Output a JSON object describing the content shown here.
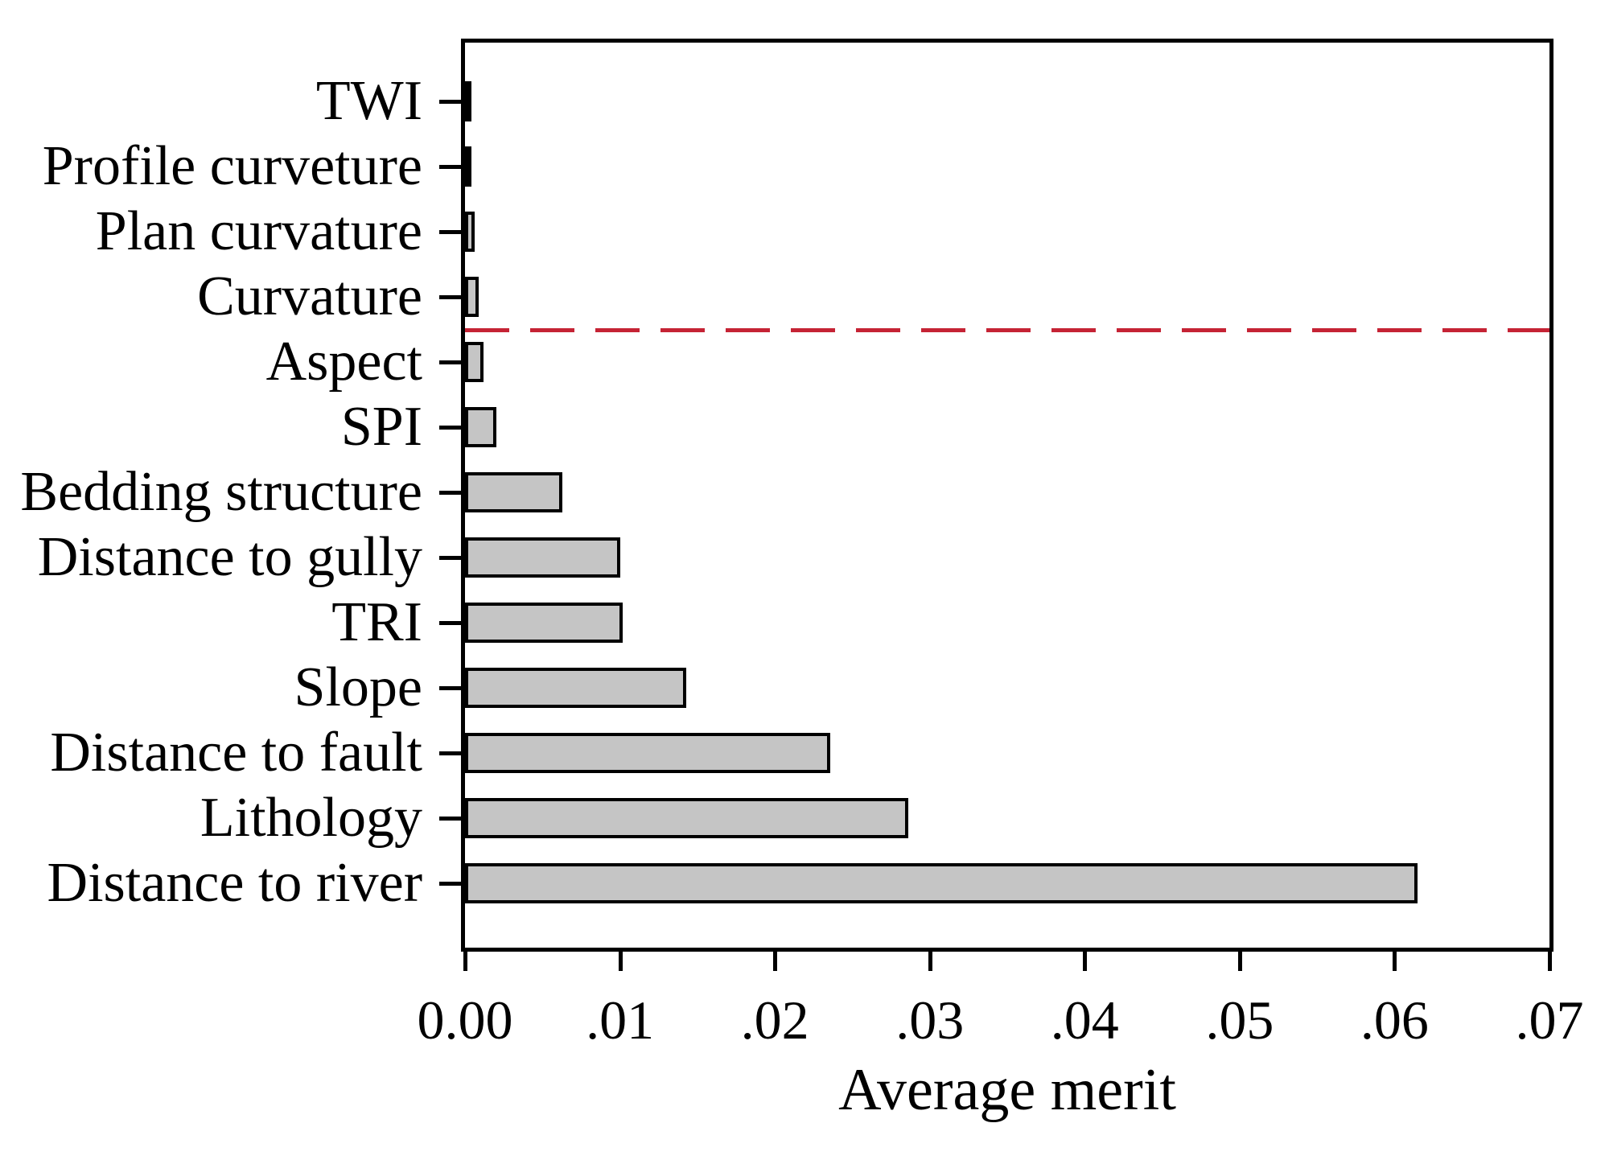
{
  "figure": {
    "background_color": "#ffffff",
    "text_color": "#000000"
  },
  "chart_data": {
    "type": "bar",
    "orientation": "horizontal",
    "title": "",
    "xlabel": "Average merit",
    "ylabel": "",
    "xlim": [
      0,
      0.07
    ],
    "grid": false,
    "legend": null,
    "categories": [
      "TWI",
      "Profile curveture",
      "Plan curvature",
      "Curvature",
      "Aspect",
      "SPI",
      "Bedding structure",
      "Distance to gully",
      "TRI",
      "Slope",
      "Distance to fault",
      "Lithology",
      "Distance to river"
    ],
    "values": [
      0.0003,
      0.0004,
      0.0006,
      0.0009,
      0.0012,
      0.002,
      0.0063,
      0.01,
      0.0102,
      0.0143,
      0.0236,
      0.0286,
      0.0615
    ],
    "x_ticks": {
      "values": [
        0,
        0.01,
        0.02,
        0.03,
        0.04,
        0.05,
        0.06,
        0.07
      ],
      "labels": [
        "0.00",
        ".01",
        ".02",
        ".03",
        ".04",
        ".05",
        ".06",
        ".07"
      ]
    },
    "bar_style": {
      "fill_color": "#c5c5c5",
      "border_color": "#000000"
    },
    "threshold_line": {
      "style": "dashed",
      "color": "#c52335",
      "between_categories": [
        "Curvature",
        "Aspect"
      ],
      "between_indices": [
        3,
        4
      ]
    }
  }
}
